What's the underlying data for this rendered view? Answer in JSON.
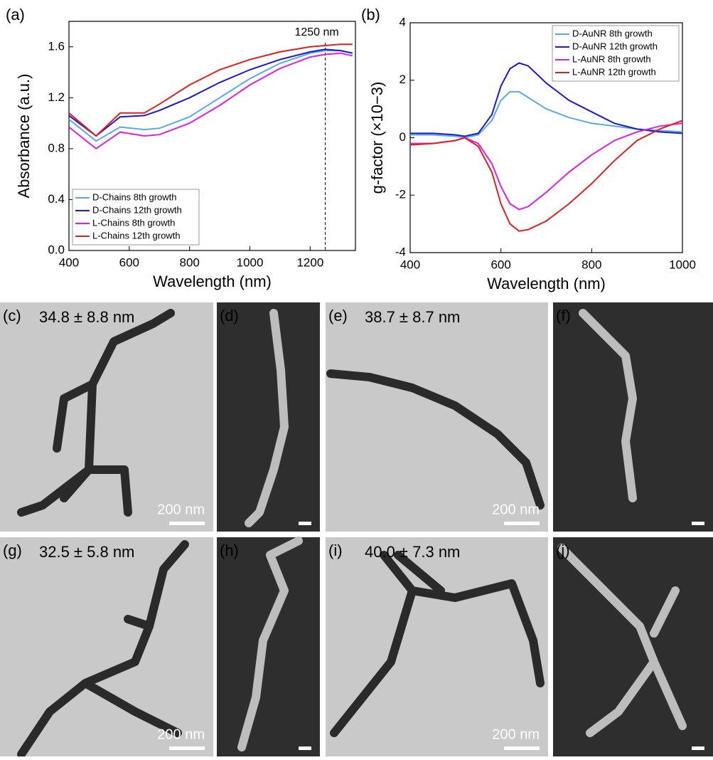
{
  "chart_data": [
    {
      "type": "line",
      "panel_label": "(a)",
      "x_label": "Wavelength (nm)",
      "y_label": "Absorbance (a.u.)",
      "xlim": [
        400,
        1350
      ],
      "xticks": [
        400,
        600,
        800,
        1000,
        1200
      ],
      "ylim": [
        0,
        1.8
      ],
      "yticks": [
        {
          "value": 0,
          "label": "0.0"
        },
        0.4,
        0.8,
        1.2,
        1.6
      ],
      "legend": "lower left",
      "annotation": {
        "text": "1250 nm",
        "x": 1250
      },
      "x": [
        400,
        490,
        570,
        650,
        700,
        800,
        900,
        1000,
        1100,
        1200,
        1250,
        1300,
        1340
      ],
      "series": [
        {
          "name": "D-Chains 8th growth",
          "color": "#5aa9e6",
          "values": [
            1.03,
            0.86,
            0.97,
            0.95,
            0.96,
            1.05,
            1.2,
            1.35,
            1.47,
            1.55,
            1.57,
            1.57,
            1.55
          ]
        },
        {
          "name": "D-Chains 12th growth",
          "color": "#1a1ad0",
          "values": [
            1.06,
            0.9,
            1.05,
            1.06,
            1.1,
            1.2,
            1.32,
            1.42,
            1.5,
            1.56,
            1.58,
            1.57,
            1.55
          ]
        },
        {
          "name": "L-Chains 8th growth",
          "color": "#e020e0",
          "values": [
            0.97,
            0.8,
            0.93,
            0.9,
            0.91,
            1.0,
            1.14,
            1.3,
            1.43,
            1.52,
            1.54,
            1.55,
            1.53
          ]
        },
        {
          "name": "L-Chains 12th growth",
          "color": "#e02020",
          "values": [
            1.08,
            0.9,
            1.08,
            1.08,
            1.15,
            1.3,
            1.42,
            1.5,
            1.56,
            1.6,
            1.61,
            1.62,
            1.62
          ]
        }
      ]
    },
    {
      "type": "line",
      "panel_label": "(b)",
      "x_label": "Wavelength (nm)",
      "y_label": "g-factor (×10−3)",
      "xlim": [
        400,
        1000
      ],
      "xticks": [
        400,
        600,
        800,
        1000
      ],
      "ylim": [
        -4,
        4
      ],
      "yticks": [
        -4,
        -2,
        0,
        2,
        4
      ],
      "legend": "upper right",
      "x": [
        400,
        450,
        500,
        520,
        550,
        580,
        600,
        620,
        640,
        660,
        700,
        750,
        800,
        850,
        900,
        950,
        1000
      ],
      "series": [
        {
          "name": "D-AuNR 8th growth",
          "color": "#5aa9e6",
          "values": [
            0.1,
            0.1,
            0.05,
            0,
            0.1,
            0.6,
            1.3,
            1.6,
            1.6,
            1.4,
            1.0,
            0.7,
            0.5,
            0.4,
            0.3,
            0.25,
            0.2
          ]
        },
        {
          "name": "D-AuNR 12th growth",
          "color": "#1a1ad0",
          "values": [
            0.15,
            0.15,
            0.1,
            0.05,
            0.15,
            0.8,
            1.8,
            2.4,
            2.6,
            2.5,
            1.9,
            1.3,
            0.9,
            0.5,
            0.3,
            0.2,
            0.15
          ]
        },
        {
          "name": "L-AuNR 8th growth",
          "color": "#e020e0",
          "values": [
            -0.2,
            -0.2,
            -0.1,
            0,
            -0.2,
            -0.9,
            -1.7,
            -2.3,
            -2.5,
            -2.4,
            -1.9,
            -1.2,
            -0.6,
            -0.1,
            0.2,
            0.4,
            0.5
          ]
        },
        {
          "name": "L-AuNR 12th growth",
          "color": "#e02020",
          "values": [
            -0.25,
            -0.2,
            -0.1,
            0,
            -0.3,
            -1.2,
            -2.3,
            -3.0,
            -3.25,
            -3.2,
            -2.9,
            -2.3,
            -1.6,
            -0.8,
            -0.1,
            0.3,
            0.6
          ]
        }
      ]
    }
  ],
  "panels": [
    {
      "label": "(c)",
      "measurement": "34.8 ± 8.8 nm",
      "scale_bar": "200 nm"
    },
    {
      "label": "(d)"
    },
    {
      "label": "(e)",
      "measurement": "38.7 ± 8.7 nm",
      "scale_bar": "200 nm"
    },
    {
      "label": "(f)"
    },
    {
      "label": "(g)",
      "measurement": "32.5 ± 5.8 nm",
      "scale_bar": "200 nm"
    },
    {
      "label": "(h)"
    },
    {
      "label": "(i)",
      "measurement": "40.0 ± 7.3 nm",
      "scale_bar": "200 nm"
    },
    {
      "label": "(j)"
    }
  ]
}
